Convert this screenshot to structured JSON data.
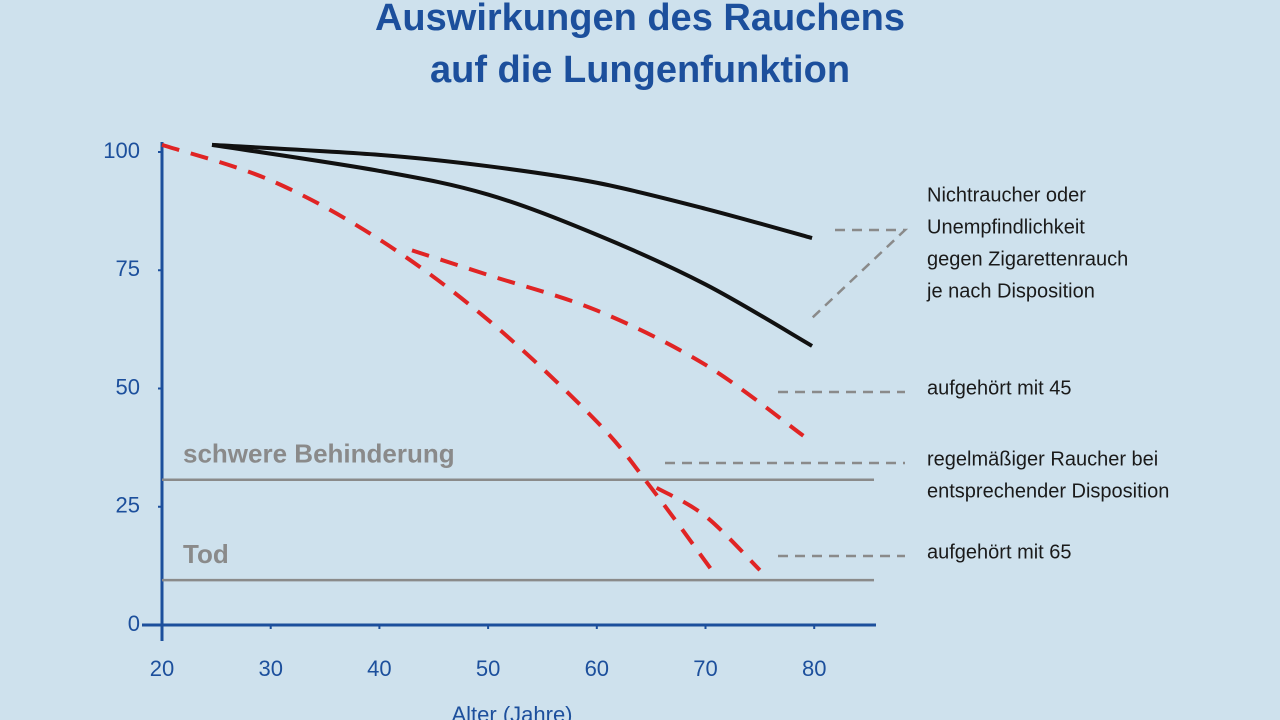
{
  "chart_data": {
    "type": "line",
    "title": [
      "Auswirkungen des Rauchens",
      "auf die Lungenfunktion"
    ],
    "x_label": "Alter (Jahre)",
    "xlim": [
      20,
      85.5
    ],
    "xticks": [
      20,
      30,
      40,
      50,
      60,
      70,
      80
    ],
    "ylim": [
      0,
      100
    ],
    "yticks": [
      0,
      25,
      50,
      75,
      100
    ],
    "series": [
      {
        "color": "#111111",
        "dashed": false,
        "x": [
          24.6,
          40,
          50,
          60,
          70,
          79.8
        ],
        "values": [
          101.5,
          99.4,
          97,
          93.5,
          88,
          81.8
        ]
      },
      {
        "color": "#111111",
        "dashed": false,
        "x": [
          24.6,
          40,
          50,
          60,
          70,
          79.8
        ],
        "values": [
          101.5,
          96,
          91,
          82.5,
          72,
          59
        ]
      },
      {
        "color": "#e02424",
        "dashed": true,
        "x": [
          20,
          30,
          40,
          50,
          60,
          65,
          70.7
        ],
        "values": [
          101.5,
          94,
          81.5,
          64.5,
          43,
          29,
          11.2
        ]
      },
      {
        "color": "#e02424",
        "dashed": true,
        "x": [
          43,
          50,
          60,
          70,
          79
        ],
        "values": [
          79.2,
          74,
          66.5,
          55,
          40
        ]
      },
      {
        "color": "#e02424",
        "dashed": true,
        "x": [
          65.5,
          70,
          75
        ],
        "values": [
          29,
          23,
          11.6
        ]
      }
    ],
    "reference_lines": [
      {
        "label": "schwere Behinderung",
        "value": 30.7,
        "color": "#8a8a8a"
      },
      {
        "label": "Tod",
        "value": 9.5,
        "color": "#8a8a8a"
      }
    ],
    "annotations": [
      {
        "lines": [
          "Nichtraucher oder",
          "Unempfindlichkeit",
          "gegen Zigarettenrauch",
          "je nach Disposition"
        ]
      },
      {
        "lines": [
          "aufgehört mit 45"
        ]
      },
      {
        "lines": [
          "regelmäßiger Raucher bei",
          "entsprechender Disposition"
        ]
      },
      {
        "lines": [
          "aufgehört mit 65"
        ]
      }
    ]
  }
}
